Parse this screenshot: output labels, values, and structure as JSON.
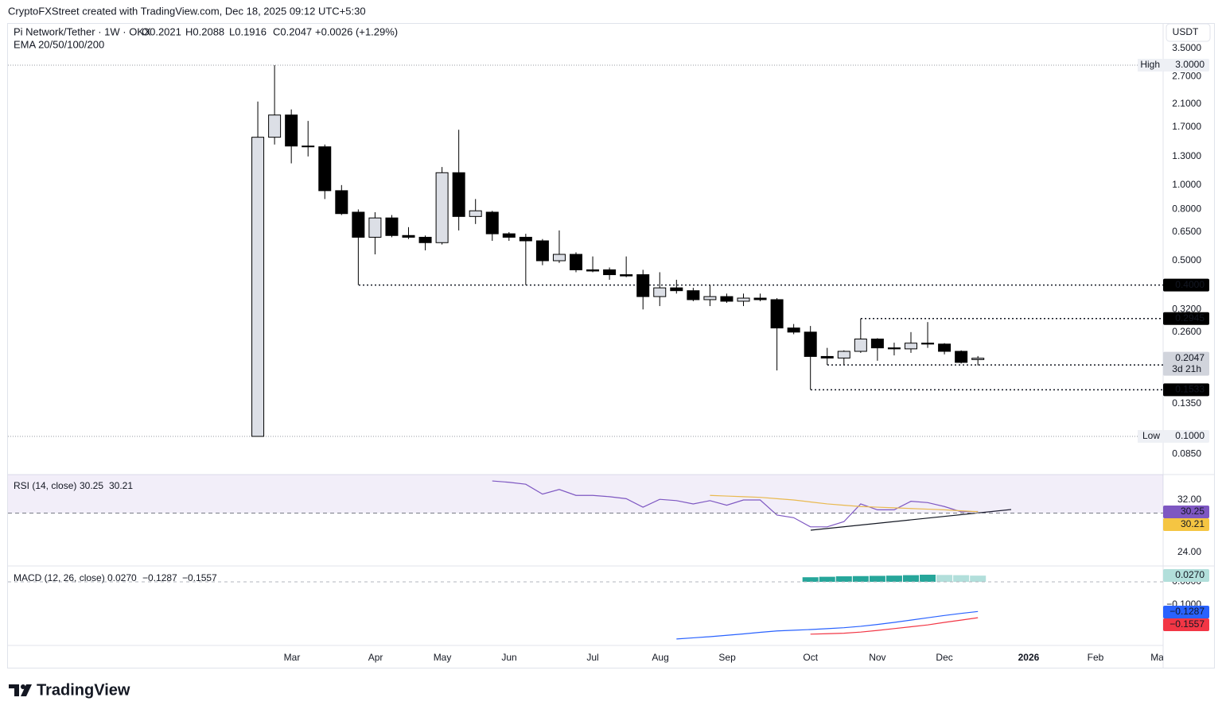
{
  "header": {
    "attribution": "CryptoFXStreet created with TradingView.com, Dec 18, 2025 09:12 UTC+5:30"
  },
  "footer": {
    "brand": "TradingView"
  },
  "chart_data": [
    {
      "type": "candlestick",
      "title": "Pi Network/Tether · 1W · OKX",
      "ohlc_labels": [
        "O0.2021",
        "H0.2088",
        "L0.1916",
        "C0.2047"
      ],
      "change_label": "+0.0026 (+1.29%)",
      "overlay_label": "EMA 20/50/100/200",
      "currency": "USDT",
      "log_scale": true,
      "color_up": "#dcdfe6",
      "color_down": "#000000",
      "open": [
        0.1,
        1.55,
        1.9,
        1.43,
        1.42,
        0.95,
        0.78,
        0.62,
        0.74,
        0.63,
        0.62,
        0.59,
        1.12,
        0.75,
        0.78,
        0.64,
        0.62,
        0.6,
        0.5,
        0.53,
        0.46,
        0.46,
        0.44,
        0.44,
        0.36,
        0.39,
        0.38,
        0.35,
        0.36,
        0.345,
        0.355,
        0.35,
        0.27,
        0.26,
        0.208,
        0.205,
        0.218,
        0.244,
        0.225,
        0.223,
        0.235,
        0.233,
        0.218,
        0.2021
      ],
      "high": [
        2.15,
        3.0,
        2.0,
        1.8,
        1.45,
        1.0,
        0.8,
        0.78,
        0.76,
        0.68,
        0.63,
        1.18,
        1.66,
        0.88,
        0.79,
        0.65,
        0.64,
        0.61,
        0.66,
        0.54,
        0.52,
        0.47,
        0.52,
        0.46,
        0.45,
        0.42,
        0.39,
        0.4,
        0.37,
        0.37,
        0.37,
        0.355,
        0.28,
        0.275,
        0.225,
        0.22,
        0.2945,
        0.246,
        0.236,
        0.26,
        0.285,
        0.235,
        0.22,
        0.2088
      ],
      "low": [
        0.1,
        1.45,
        1.22,
        1.3,
        0.88,
        0.76,
        0.4,
        0.53,
        0.62,
        0.61,
        0.55,
        0.58,
        0.66,
        0.7,
        0.6,
        0.6,
        0.4,
        0.48,
        0.49,
        0.45,
        0.45,
        0.42,
        0.43,
        0.32,
        0.33,
        0.37,
        0.345,
        0.33,
        0.34,
        0.33,
        0.345,
        0.183,
        0.255,
        0.1533,
        0.1924,
        0.193,
        0.215,
        0.2,
        0.21,
        0.215,
        0.225,
        0.212,
        0.195,
        0.1916
      ],
      "close": [
        1.55,
        1.9,
        1.43,
        1.42,
        0.95,
        0.77,
        0.62,
        0.74,
        0.63,
        0.62,
        0.59,
        1.12,
        0.75,
        0.79,
        0.64,
        0.62,
        0.6,
        0.5,
        0.53,
        0.46,
        0.455,
        0.44,
        0.435,
        0.36,
        0.39,
        0.38,
        0.35,
        0.36,
        0.345,
        0.355,
        0.35,
        0.27,
        0.26,
        0.208,
        0.205,
        0.218,
        0.244,
        0.225,
        0.223,
        0.235,
        0.233,
        0.218,
        0.197,
        0.2047
      ],
      "ylim": [
        0.0705,
        3.47
      ],
      "yticks": [
        {
          "value": 3.5,
          "label": "3.5000"
        },
        {
          "value": 2.7,
          "label": "2.7000"
        },
        {
          "value": 2.1,
          "label": "2.1000"
        },
        {
          "value": 1.7,
          "label": "1.7000"
        },
        {
          "value": 1.3,
          "label": "1.3000"
        },
        {
          "value": 1.0,
          "label": "1.0000"
        },
        {
          "value": 0.8,
          "label": "0.8000"
        },
        {
          "value": 0.65,
          "label": "0.6500"
        },
        {
          "value": 0.5,
          "label": "0.5000"
        },
        {
          "value": 0.32,
          "label": "0.3200"
        },
        {
          "value": 0.26,
          "label": "0.2600"
        },
        {
          "value": 0.135,
          "label": "0.1350"
        },
        {
          "value": 0.085,
          "label": "0.0850"
        }
      ],
      "xlim": [
        -14.92,
        54.06
      ],
      "xticks": [
        {
          "value": 2.04,
          "label": "Mar"
        },
        {
          "value": 7.03,
          "label": "Apr"
        },
        {
          "value": 11.02,
          "label": "May"
        },
        {
          "value": 15.01,
          "label": "Jun"
        },
        {
          "value": 20.0,
          "label": "Jul"
        },
        {
          "value": 24.04,
          "label": "Aug"
        },
        {
          "value": 28.03,
          "label": "Sep"
        },
        {
          "value": 33.0,
          "label": "Oct"
        },
        {
          "value": 37.0,
          "label": "Nov"
        },
        {
          "value": 41.0,
          "label": "Dec"
        },
        {
          "value": 46.03,
          "label": "2026"
        },
        {
          "value": 50.02,
          "label": "Feb"
        },
        {
          "value": 53.8,
          "label": "Mar"
        }
      ],
      "levels": [
        {
          "value": 3.0,
          "label": "3.0000",
          "name": "High"
        },
        {
          "value": 0.1,
          "label": "0.1000",
          "name": "Low"
        },
        {
          "value": 0.4,
          "label": "0.4000"
        },
        {
          "value": 0.2945,
          "label": "0.2945"
        },
        {
          "value": 0.1924,
          "label": "0.1924"
        },
        {
          "value": 0.1533,
          "label": "0.1533"
        }
      ],
      "last_price": {
        "value": 0.2047,
        "label": "0.2047",
        "countdown": "3d 21h"
      }
    },
    {
      "type": "line",
      "title": "RSI (14, close)",
      "ylim": [
        21.94,
        35.88
      ],
      "yticks": [
        {
          "value": 32,
          "label": "32.00"
        },
        {
          "value": 24,
          "label": "24.00"
        }
      ],
      "band": [
        30,
        70
      ],
      "band_color": "#7e57c2",
      "series": [
        {
          "color": "#7e57c2",
          "last_label": "30.25",
          "values": [
            null,
            null,
            null,
            null,
            null,
            null,
            null,
            null,
            null,
            null,
            null,
            null,
            null,
            null,
            34.9,
            34.7,
            34.4,
            32.9,
            33.6,
            32.7,
            32.7,
            32.5,
            32.2,
            30.9,
            32.1,
            31.9,
            31.4,
            31.9,
            31.2,
            32.0,
            32.0,
            29.7,
            29.3,
            27.9,
            27.9,
            28.7,
            31.4,
            30.5,
            30.5,
            31.8,
            31.6,
            31.0,
            30.2,
            30.25
          ]
        },
        {
          "color": "#f5c542",
          "last_label": "30.21",
          "values": [
            null,
            null,
            null,
            null,
            null,
            null,
            null,
            null,
            null,
            null,
            null,
            null,
            null,
            null,
            null,
            null,
            null,
            null,
            null,
            null,
            null,
            null,
            null,
            null,
            null,
            null,
            null,
            32.7,
            32.6,
            32.5,
            32.4,
            32.2,
            32.0,
            31.7,
            31.4,
            31.2,
            31.0,
            30.9,
            30.8,
            30.7,
            30.6,
            30.5,
            30.35,
            30.21
          ]
        }
      ]
    },
    {
      "type": "macd",
      "title": "MACD (12, 26, close)",
      "ylim": [
        -0.276,
        0.069
      ],
      "yticks": [
        {
          "value": 0,
          "label": "0.0000"
        },
        {
          "value": -0.1,
          "label": "−0.1000"
        }
      ],
      "histogram": {
        "color_rising": "#26a69a",
        "color_falling": "#b2dfdb",
        "last_label": "0.0270",
        "values": [
          null,
          null,
          null,
          null,
          null,
          null,
          null,
          null,
          null,
          null,
          null,
          null,
          null,
          null,
          null,
          null,
          null,
          null,
          null,
          null,
          null,
          null,
          null,
          null,
          null,
          null,
          null,
          null,
          null,
          null,
          null,
          null,
          null,
          0.02,
          0.022,
          0.024,
          0.025,
          0.026,
          0.027,
          0.029,
          0.031,
          0.03,
          0.029,
          0.027
        ]
      },
      "series": [
        {
          "color": "#2962ff",
          "last_label": "−0.1287",
          "values": [
            null,
            null,
            null,
            null,
            null,
            null,
            null,
            null,
            null,
            null,
            null,
            null,
            null,
            null,
            null,
            null,
            null,
            null,
            null,
            null,
            null,
            null,
            null,
            null,
            null,
            -0.248,
            -0.243,
            -0.238,
            -0.232,
            -0.226,
            -0.219,
            -0.213,
            -0.21,
            -0.207,
            -0.203,
            -0.199,
            -0.193,
            -0.185,
            -0.176,
            -0.166,
            -0.156,
            -0.146,
            -0.137,
            -0.1287
          ]
        },
        {
          "color": "#f23645",
          "last_label": "−0.1557",
          "values": [
            null,
            null,
            null,
            null,
            null,
            null,
            null,
            null,
            null,
            null,
            null,
            null,
            null,
            null,
            null,
            null,
            null,
            null,
            null,
            null,
            null,
            null,
            null,
            null,
            null,
            null,
            null,
            null,
            null,
            null,
            null,
            null,
            null,
            -0.227,
            -0.225,
            -0.223,
            -0.218,
            -0.211,
            -0.203,
            -0.195,
            -0.187,
            -0.176,
            -0.166,
            -0.1557
          ]
        }
      ]
    }
  ]
}
